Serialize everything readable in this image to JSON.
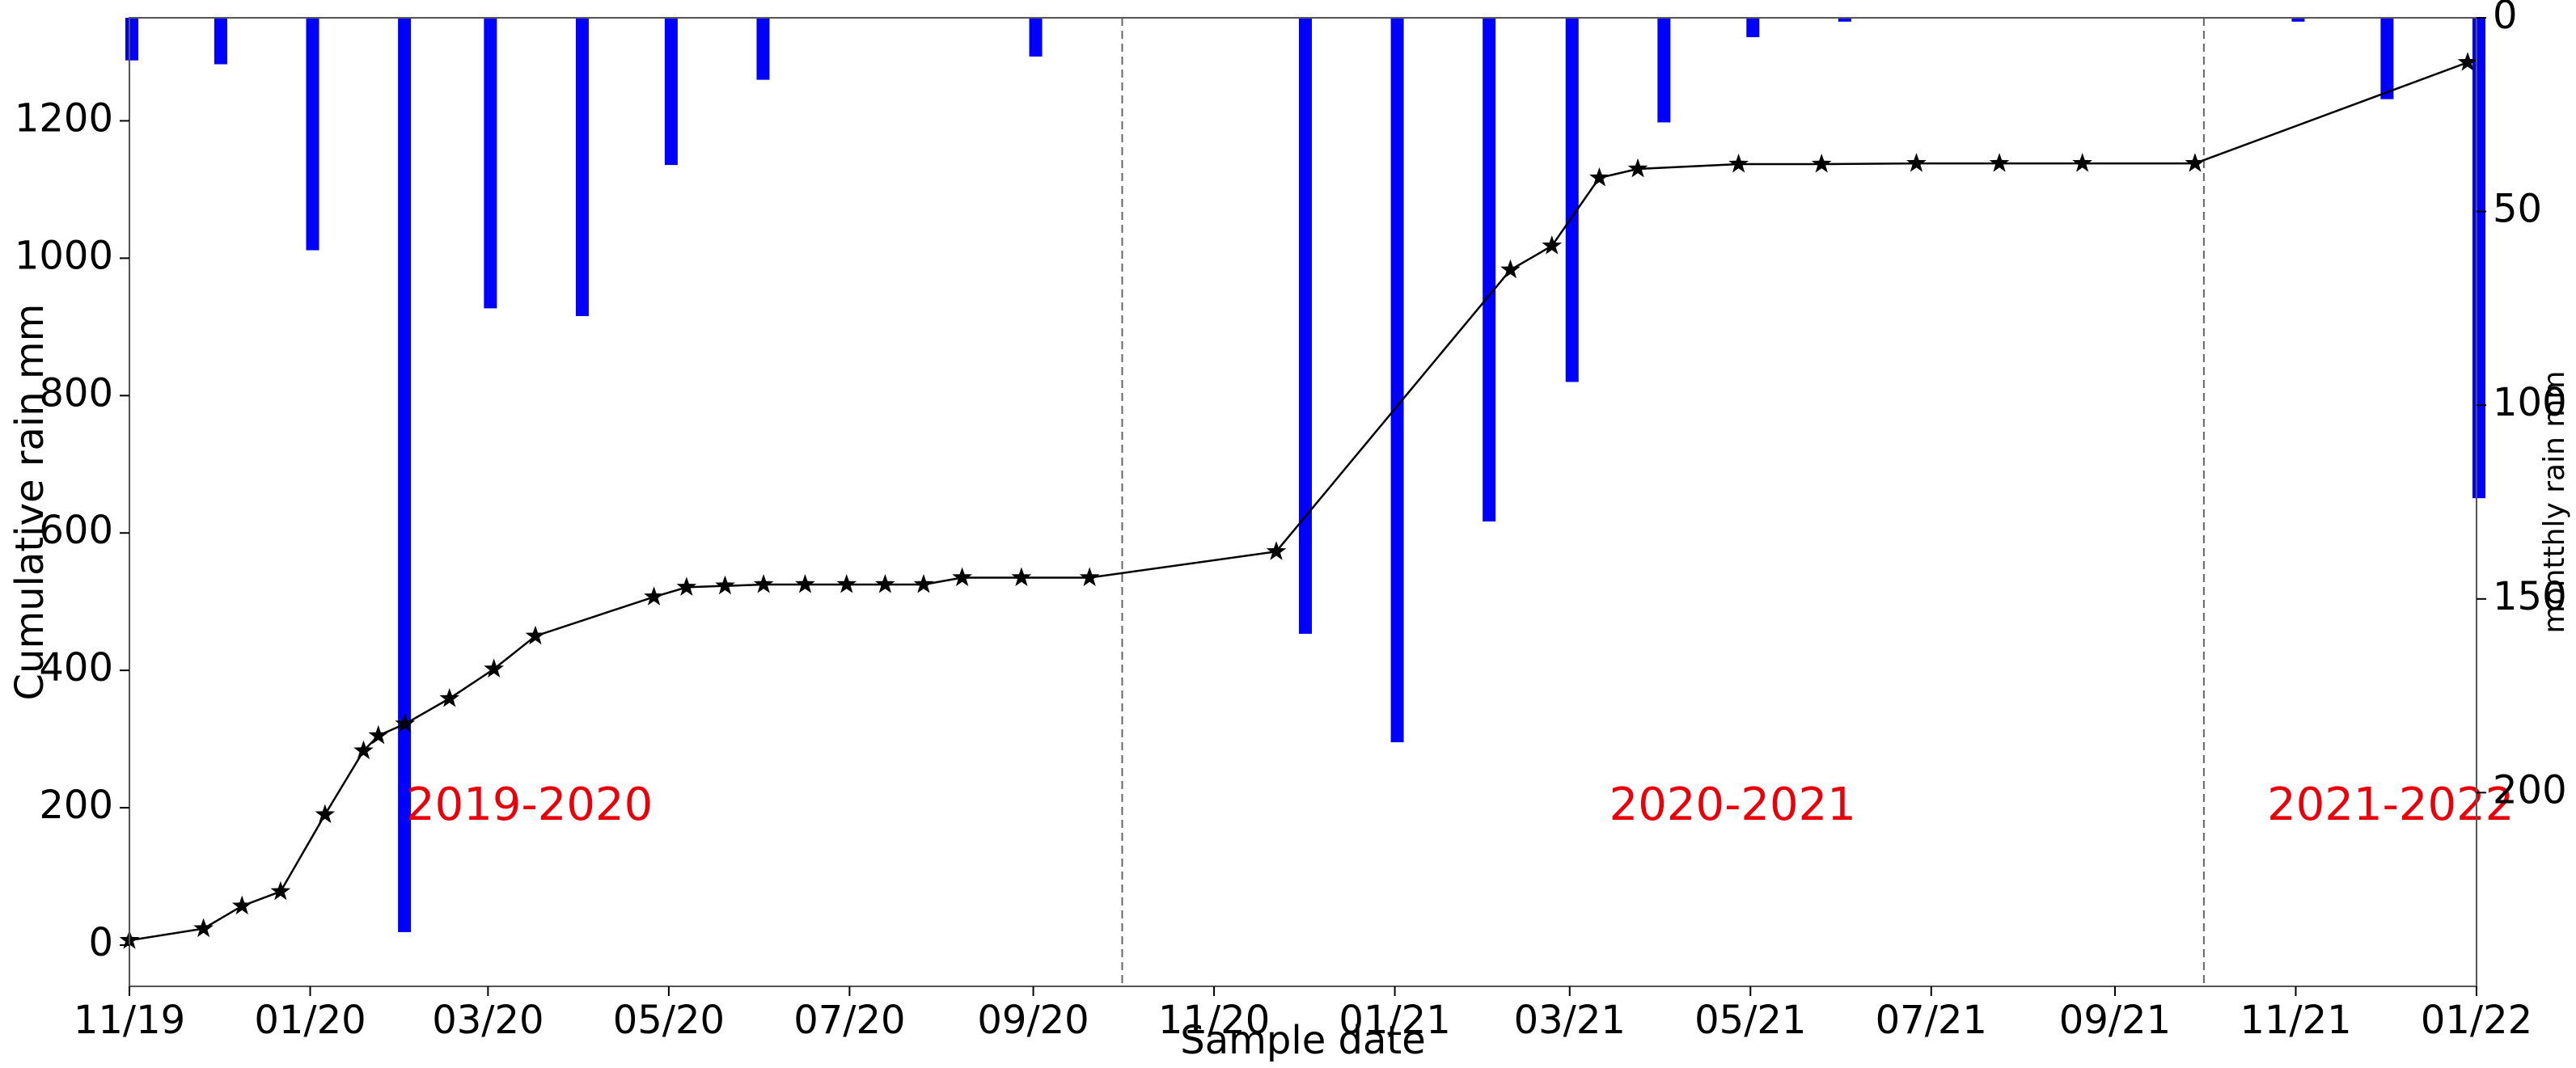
{
  "chart_data": {
    "type": "bar+line",
    "title": "",
    "xlabel": "Sample date",
    "ylabel": "Cumulative rain mm",
    "ylabel_right": "montthly rain mm",
    "x_axis": {
      "type": "date",
      "range": [
        "2019-11-01",
        "2022-01-01"
      ],
      "tick_labels": [
        "11/19",
        "01/20",
        "03/20",
        "05/20",
        "07/20",
        "09/20",
        "11/20",
        "01/21",
        "03/21",
        "05/21",
        "07/21",
        "09/21",
        "11/21",
        "01/22"
      ],
      "tick_dates": [
        "2019-11-01",
        "2020-01-01",
        "2020-03-01",
        "2020-05-01",
        "2020-07-01",
        "2020-09-01",
        "2020-11-01",
        "2021-01-01",
        "2021-03-01",
        "2021-05-01",
        "2021-07-01",
        "2021-09-01",
        "2021-11-01",
        "2022-01-01"
      ]
    },
    "y_axis_left": {
      "range": [
        -60,
        1350
      ],
      "ticks": [
        0,
        200,
        400,
        600,
        800,
        1000,
        1200
      ],
      "tick_labels": [
        "0",
        "200",
        "400",
        "600",
        "800",
        "1000",
        "1200"
      ]
    },
    "y_axis_right": {
      "range": [
        0,
        250
      ],
      "inverted": true,
      "ticks": [
        0,
        50,
        100,
        150,
        200
      ],
      "tick_labels": [
        "0",
        "50",
        "100",
        "150",
        "200"
      ]
    },
    "grid": false,
    "cumulative_series": {
      "color": "#000000",
      "marker": "star",
      "points": [
        {
          "date": "2019-11-01",
          "value": 7
        },
        {
          "date": "2019-11-26",
          "value": 24
        },
        {
          "date": "2019-12-09",
          "value": 57
        },
        {
          "date": "2019-12-22",
          "value": 78
        },
        {
          "date": "2020-01-06",
          "value": 190
        },
        {
          "date": "2020-01-19",
          "value": 283
        },
        {
          "date": "2020-01-24",
          "value": 305
        },
        {
          "date": "2020-02-02",
          "value": 322
        },
        {
          "date": "2020-02-17",
          "value": 359
        },
        {
          "date": "2020-03-03",
          "value": 402
        },
        {
          "date": "2020-03-17",
          "value": 450
        },
        {
          "date": "2020-04-26",
          "value": 507
        },
        {
          "date": "2020-05-07",
          "value": 521
        },
        {
          "date": "2020-05-20",
          "value": 523
        },
        {
          "date": "2020-06-02",
          "value": 525
        },
        {
          "date": "2020-06-16",
          "value": 525
        },
        {
          "date": "2020-06-30",
          "value": 525
        },
        {
          "date": "2020-07-13",
          "value": 525
        },
        {
          "date": "2020-07-26",
          "value": 525
        },
        {
          "date": "2020-08-08",
          "value": 535
        },
        {
          "date": "2020-08-28",
          "value": 535
        },
        {
          "date": "2020-09-20",
          "value": 535
        },
        {
          "date": "2020-11-22",
          "value": 573
        },
        {
          "date": "2021-02-09",
          "value": 983
        },
        {
          "date": "2021-02-23",
          "value": 1018
        },
        {
          "date": "2021-03-11",
          "value": 1117
        },
        {
          "date": "2021-03-24",
          "value": 1130
        },
        {
          "date": "2021-04-27",
          "value": 1137
        },
        {
          "date": "2021-05-25",
          "value": 1137
        },
        {
          "date": "2021-06-26",
          "value": 1138
        },
        {
          "date": "2021-07-24",
          "value": 1138
        },
        {
          "date": "2021-08-21",
          "value": 1138
        },
        {
          "date": "2021-09-28",
          "value": 1138
        },
        {
          "date": "2021-12-29",
          "value": 1285
        }
      ]
    },
    "monthly_series": {
      "color": "#0000ff",
      "bars": [
        {
          "date": "2019-11-01",
          "value": 11
        },
        {
          "date": "2019-12-01",
          "value": 12
        },
        {
          "date": "2020-01-01",
          "value": 60
        },
        {
          "date": "2020-02-01",
          "value": 236
        },
        {
          "date": "2020-03-01",
          "value": 75
        },
        {
          "date": "2020-04-01",
          "value": 77
        },
        {
          "date": "2020-05-01",
          "value": 38
        },
        {
          "date": "2020-06-01",
          "value": 16
        },
        {
          "date": "2020-09-01",
          "value": 10
        },
        {
          "date": "2020-12-01",
          "value": 159
        },
        {
          "date": "2021-01-01",
          "value": 187
        },
        {
          "date": "2021-02-01",
          "value": 130
        },
        {
          "date": "2021-03-01",
          "value": 94
        },
        {
          "date": "2021-04-01",
          "value": 27
        },
        {
          "date": "2021-05-01",
          "value": 5
        },
        {
          "date": "2021-06-01",
          "value": 1
        },
        {
          "date": "2021-11-01",
          "value": 1
        },
        {
          "date": "2021-12-01",
          "value": 21
        },
        {
          "date": "2022-01-01",
          "value": 124
        }
      ]
    },
    "season_dividers": [
      "2020-10-01",
      "2021-10-01"
    ],
    "annotations": [
      {
        "text": "2019-2020",
        "date": "2020-03-15",
        "value": 200,
        "color": "#e8000b"
      },
      {
        "text": "2020-2021",
        "date": "2021-04-25",
        "value": 200,
        "color": "#e8000b"
      },
      {
        "text": "2021-2022",
        "date": "2021-12-03",
        "value": 200,
        "color": "#e8000b"
      }
    ]
  }
}
